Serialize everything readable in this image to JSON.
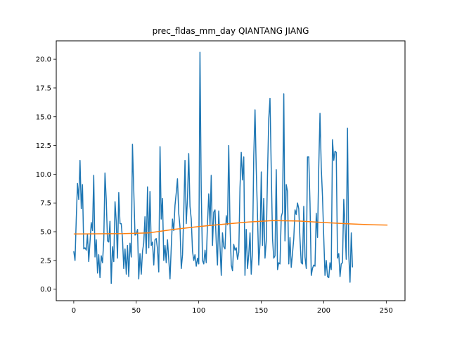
{
  "chart_data": {
    "type": "line",
    "title": "prec_fldas_mm_day QIANTANG JIANG",
    "xlabel": "",
    "ylabel": "",
    "xlim": [
      -14,
      265
    ],
    "ylim": [
      -1,
      21.6
    ],
    "xticks": [
      0,
      50,
      100,
      150,
      200,
      250
    ],
    "yticks": [
      0.0,
      2.5,
      5.0,
      7.5,
      10.0,
      12.5,
      15.0,
      17.5,
      20.0
    ],
    "ytick_labels": [
      "0.0",
      "2.5",
      "5.0",
      "7.5",
      "10.0",
      "12.5",
      "15.0",
      "17.5",
      "20.0"
    ],
    "grid": false,
    "series": [
      {
        "color": "#1f77b4",
        "x_start": 0,
        "values": [
          3.3,
          2.5,
          6.0,
          9.2,
          7.8,
          11.2,
          7.0,
          9.1,
          3.5,
          3.6,
          3.4,
          4.8,
          2.4,
          4.1,
          5.8,
          5.1,
          9.9,
          2.8,
          4.3,
          1.4,
          3.0,
          1.0,
          2.9,
          2.3,
          4.3,
          10.1,
          7.8,
          4.2,
          4.1,
          5.9,
          0.5,
          3.7,
          2.4,
          7.6,
          5.9,
          2.7,
          8.4,
          5.7,
          5.7,
          4.4,
          1.8,
          3.5,
          1.3,
          3.8,
          1.1,
          4.0,
          2.8,
          12.6,
          8.7,
          4.7,
          4.8,
          5.2,
          0.9,
          3.1,
          1.3,
          3.3,
          4.0,
          6.3,
          3.1,
          8.9,
          3.6,
          8.5,
          3.8,
          4.1,
          2.1,
          4.3,
          4.4,
          3.5,
          1.5,
          12.4,
          6.1,
          7.9,
          2.5,
          3.8,
          2.3,
          4.3,
          2.6,
          0.9,
          3.7,
          6.1,
          5.1,
          7.3,
          8.4,
          9.6,
          6.6,
          5.4,
          1.8,
          3.0,
          6.5,
          11.2,
          5.7,
          8.0,
          11.8,
          7.2,
          6.1,
          3.3,
          2.5,
          3.0,
          2.0,
          2.7,
          2.2,
          20.6,
          8.6,
          2.5,
          2.2,
          3.4,
          2.3,
          5.7,
          8.3,
          5.6,
          9.9,
          3.8,
          6.7,
          6.9,
          4.0,
          2.1,
          6.8,
          3.7,
          1.2,
          4.9,
          3.7,
          3.5,
          6.4,
          5.6,
          12.5,
          5.6,
          2.1,
          1.6,
          3.9,
          3.4,
          3.6,
          2.6,
          3.2,
          8.8,
          11.9,
          9.5,
          11.5,
          1.2,
          5.2,
          1.8,
          3.0,
          4.9,
          1.3,
          3.3,
          11.6,
          15.6,
          10.5,
          6.5,
          2.1,
          4.0,
          10.2,
          3.8,
          7.9,
          2.7,
          4.2,
          9.8,
          14.8,
          16.6,
          10.3,
          4.4,
          2.7,
          2.9,
          10.4,
          1.7,
          2.3,
          2.2,
          6.3,
          6.7,
          17.0,
          4.2,
          9.1,
          8.5,
          2.2,
          4.5,
          1.9,
          3.1,
          4.4,
          6.9,
          6.5,
          7.5,
          7.0,
          4.3,
          2.3,
          2.2,
          7.2,
          2.8,
          1.8,
          11.5,
          11.5,
          7.5,
          1.2,
          1.8,
          2.1,
          2.0,
          6.6,
          4.5,
          10.5,
          15.3,
          10.6,
          8.0,
          4.6,
          1.2,
          2.5,
          1.1,
          1.0,
          2.3,
          1.7,
          13.0,
          11.2,
          12.0,
          11.9,
          2.7,
          3.1,
          1.1,
          2.2,
          2.3,
          7.8,
          5.5,
          2.6,
          14.0,
          3.0,
          0.6,
          4.9,
          1.9
        ]
      },
      {
        "color": "#ff7f0e",
        "x": [
          0,
          20,
          40,
          60,
          80,
          100,
          120,
          140,
          160,
          180,
          200,
          220,
          240,
          251
        ],
        "values": [
          4.8,
          4.82,
          4.83,
          4.9,
          5.2,
          5.45,
          5.65,
          5.85,
          5.97,
          5.93,
          5.8,
          5.68,
          5.6,
          5.58
        ]
      }
    ]
  }
}
